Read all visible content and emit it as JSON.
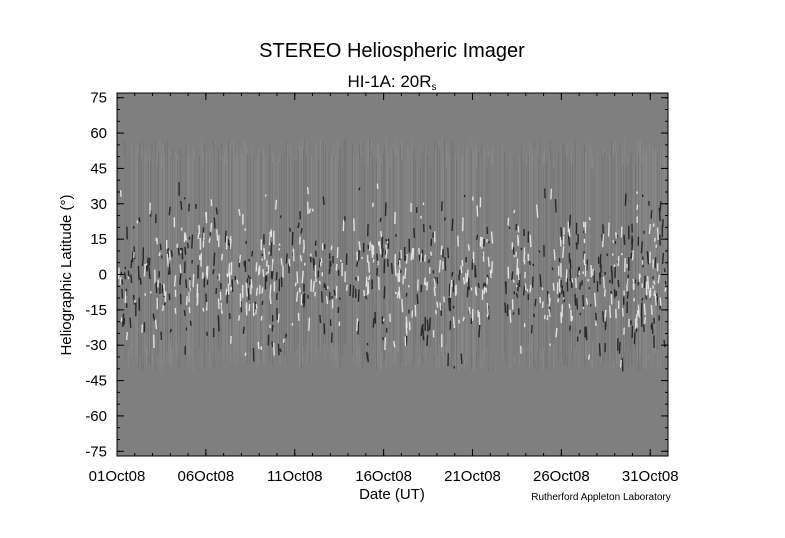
{
  "chart_data": {
    "type": "heatmap",
    "title": "STEREO Heliospheric Imager",
    "subtitle": {
      "main": "HI-1A: 20R",
      "subscript": "s"
    },
    "xlabel": "Date (UT)",
    "ylabel": "Heliographic Latitude (°)",
    "credit": "Rutherford Appleton Laboratory",
    "xticks": [
      "01Oct08",
      "06Oct08",
      "11Oct08",
      "16Oct08",
      "21Oct08",
      "26Oct08",
      "31Oct08"
    ],
    "yticks": [
      "75",
      "60",
      "45",
      "30",
      "15",
      "0",
      "-15",
      "-30",
      "-45",
      "-60",
      "-75"
    ],
    "xlim_days": [
      1,
      32
    ],
    "ylim": [
      -77,
      77
    ],
    "data_lat_range": [
      -41,
      57.5
    ],
    "data_gap_days": [
      22.2,
      22.7
    ],
    "colors": {
      "background": "#7f7f7f",
      "frame": "#000000"
    }
  }
}
